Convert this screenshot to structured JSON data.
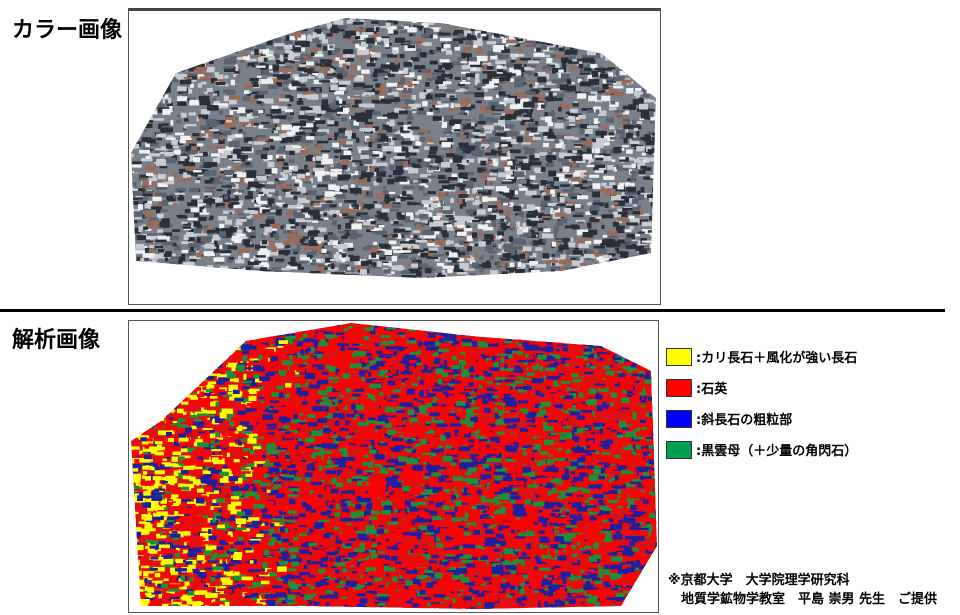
{
  "color_section": {
    "title": "カラー画像"
  },
  "analysis_section": {
    "title": "解析画像"
  },
  "legend": [
    {
      "label": ":カリ長石＋風化が強い長石",
      "color": "#ffff00"
    },
    {
      "label": ":石英",
      "color": "#ff0000"
    },
    {
      "label": ":斜長石の粗粒部",
      "color": "#0000ff"
    },
    {
      "label": ":黒雲母（＋少量の角閃石）",
      "color": "#00a050"
    }
  ],
  "credit": {
    "line1": "※京都大学　大学院理学研究科",
    "line2": "　地質学鉱物学教室　平島 崇男 先生　ご提供"
  }
}
